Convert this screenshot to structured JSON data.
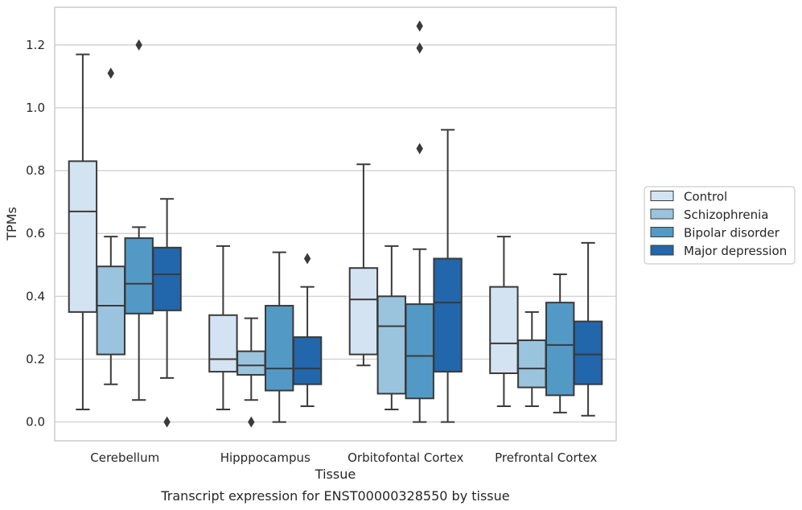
{
  "chart_data": {
    "type": "box",
    "caption": "Transcript expression for ENST00000328550 by tissue",
    "xlabel": "Tissue",
    "ylabel": "TPMs",
    "ylim": [
      -0.06,
      1.32
    ],
    "yticks": [
      0.0,
      0.2,
      0.4,
      0.6,
      0.8,
      1.0,
      1.2
    ],
    "ytick_labels": [
      "0.0",
      "0.2",
      "0.4",
      "0.6",
      "0.8",
      "1.0",
      "1.2"
    ],
    "grid": "horizontal",
    "legend_position": "right",
    "categories": [
      "Cerebellum",
      "Hipppocampus",
      "Orbitofontal Cortex",
      "Prefrontal Cortex"
    ],
    "series": [
      {
        "name": "Control",
        "color": "#d4e3f1",
        "boxes": [
          {
            "whislo": 0.04,
            "q1": 0.35,
            "med": 0.67,
            "q3": 0.83,
            "whishi": 1.17,
            "fliers": []
          },
          {
            "whislo": 0.04,
            "q1": 0.16,
            "med": 0.2,
            "q3": 0.34,
            "whishi": 0.56,
            "fliers": []
          },
          {
            "whislo": 0.18,
            "q1": 0.215,
            "med": 0.39,
            "q3": 0.49,
            "whishi": 0.82,
            "fliers": []
          },
          {
            "whislo": 0.05,
            "q1": 0.155,
            "med": 0.25,
            "q3": 0.43,
            "whishi": 0.59,
            "fliers": []
          }
        ]
      },
      {
        "name": "Schizophrenia",
        "color": "#9ac4de",
        "boxes": [
          {
            "whislo": 0.12,
            "q1": 0.215,
            "med": 0.37,
            "q3": 0.495,
            "whishi": 0.59,
            "fliers": [
              1.11
            ]
          },
          {
            "whislo": 0.07,
            "q1": 0.15,
            "med": 0.18,
            "q3": 0.225,
            "whishi": 0.33,
            "fliers": [
              0.0
            ]
          },
          {
            "whislo": 0.04,
            "q1": 0.09,
            "med": 0.305,
            "q3": 0.4,
            "whishi": 0.56,
            "fliers": []
          },
          {
            "whislo": 0.05,
            "q1": 0.11,
            "med": 0.17,
            "q3": 0.26,
            "whishi": 0.35,
            "fliers": []
          }
        ]
      },
      {
        "name": "Bipolar disorder",
        "color": "#5399c6",
        "boxes": [
          {
            "whislo": 0.07,
            "q1": 0.345,
            "med": 0.44,
            "q3": 0.585,
            "whishi": 0.62,
            "fliers": [
              1.2
            ]
          },
          {
            "whislo": 0.0,
            "q1": 0.1,
            "med": 0.17,
            "q3": 0.37,
            "whishi": 0.54,
            "fliers": []
          },
          {
            "whislo": 0.0,
            "q1": 0.075,
            "med": 0.21,
            "q3": 0.375,
            "whishi": 0.55,
            "fliers": [
              0.87,
              1.19,
              1.26
            ]
          },
          {
            "whislo": 0.03,
            "q1": 0.085,
            "med": 0.245,
            "q3": 0.38,
            "whishi": 0.47,
            "fliers": []
          }
        ]
      },
      {
        "name": "Major depression",
        "color": "#2266ab",
        "boxes": [
          {
            "whislo": 0.14,
            "q1": 0.355,
            "med": 0.47,
            "q3": 0.555,
            "whishi": 0.71,
            "fliers": [
              0.0
            ]
          },
          {
            "whislo": 0.05,
            "q1": 0.12,
            "med": 0.17,
            "q3": 0.27,
            "whishi": 0.43,
            "fliers": [
              0.52
            ]
          },
          {
            "whislo": 0.0,
            "q1": 0.16,
            "med": 0.38,
            "q3": 0.52,
            "whishi": 0.93,
            "fliers": []
          },
          {
            "whislo": 0.02,
            "q1": 0.12,
            "med": 0.215,
            "q3": 0.32,
            "whishi": 0.57,
            "fliers": []
          }
        ]
      }
    ]
  }
}
